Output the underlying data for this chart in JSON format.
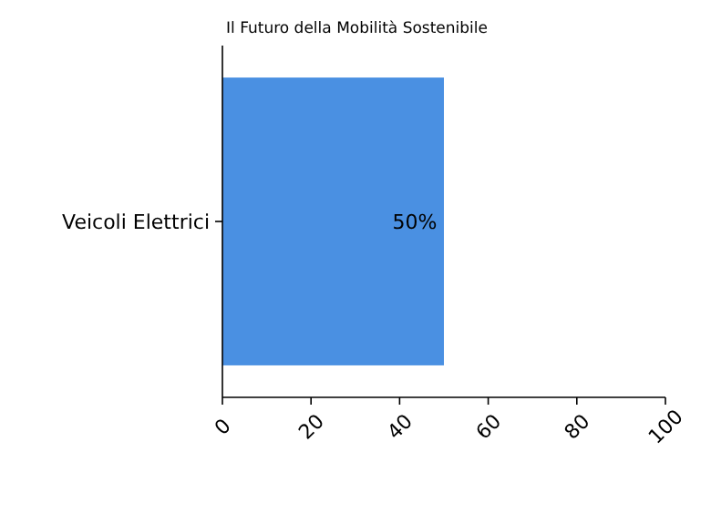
{
  "chart_data": {
    "type": "bar",
    "title": "Il Futuro della Mobilità Sostenibile",
    "orientation": "horizontal",
    "categories": [
      "Veicoli Elettrici"
    ],
    "values": [
      50
    ],
    "value_labels": [
      "50%"
    ],
    "color": "#4a90e2",
    "xlim": [
      0,
      100
    ],
    "xticks": [
      0,
      20,
      40,
      60,
      80,
      100
    ]
  }
}
